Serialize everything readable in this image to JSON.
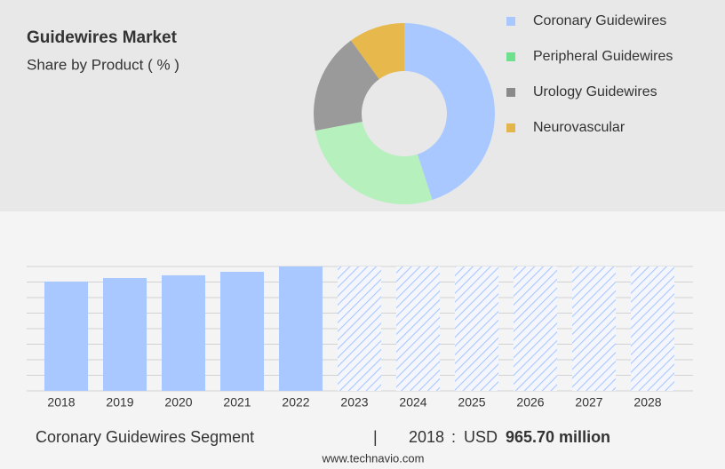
{
  "chart_data": [
    {
      "type": "donut",
      "title": "Guidewires Market",
      "subtitle": "Share by Product ( % )",
      "categories": [
        "Coronary Guidewires",
        "Peripheral Guidewires",
        "Urology Guidewires",
        "Neurovascular"
      ],
      "values": [
        45,
        27,
        18,
        10
      ],
      "colors": [
        "#a9c8ff",
        "#b5f0bd",
        "#9a9a9a",
        "#e7b94c"
      ],
      "legend_colors": [
        "#a9c8ff",
        "#6ee08e",
        "#8a8a8a",
        "#e2b64a"
      ]
    },
    {
      "type": "bar",
      "categories": [
        "2018",
        "2019",
        "2020",
        "2021",
        "2022",
        "2023",
        "2024",
        "2025",
        "2026",
        "2027",
        "2028"
      ],
      "values": [
        965.7,
        997,
        1021,
        1052,
        1099,
        null,
        null,
        null,
        null,
        null,
        null
      ],
      "color": "#a9c8ff",
      "ylim": [
        0,
        1099
      ]
    }
  ],
  "footer": {
    "segment": "Coronary Guidewires Segment",
    "year": "2018",
    "currency": "USD",
    "value": "965.70 million",
    "source": "www.technavio.com"
  }
}
